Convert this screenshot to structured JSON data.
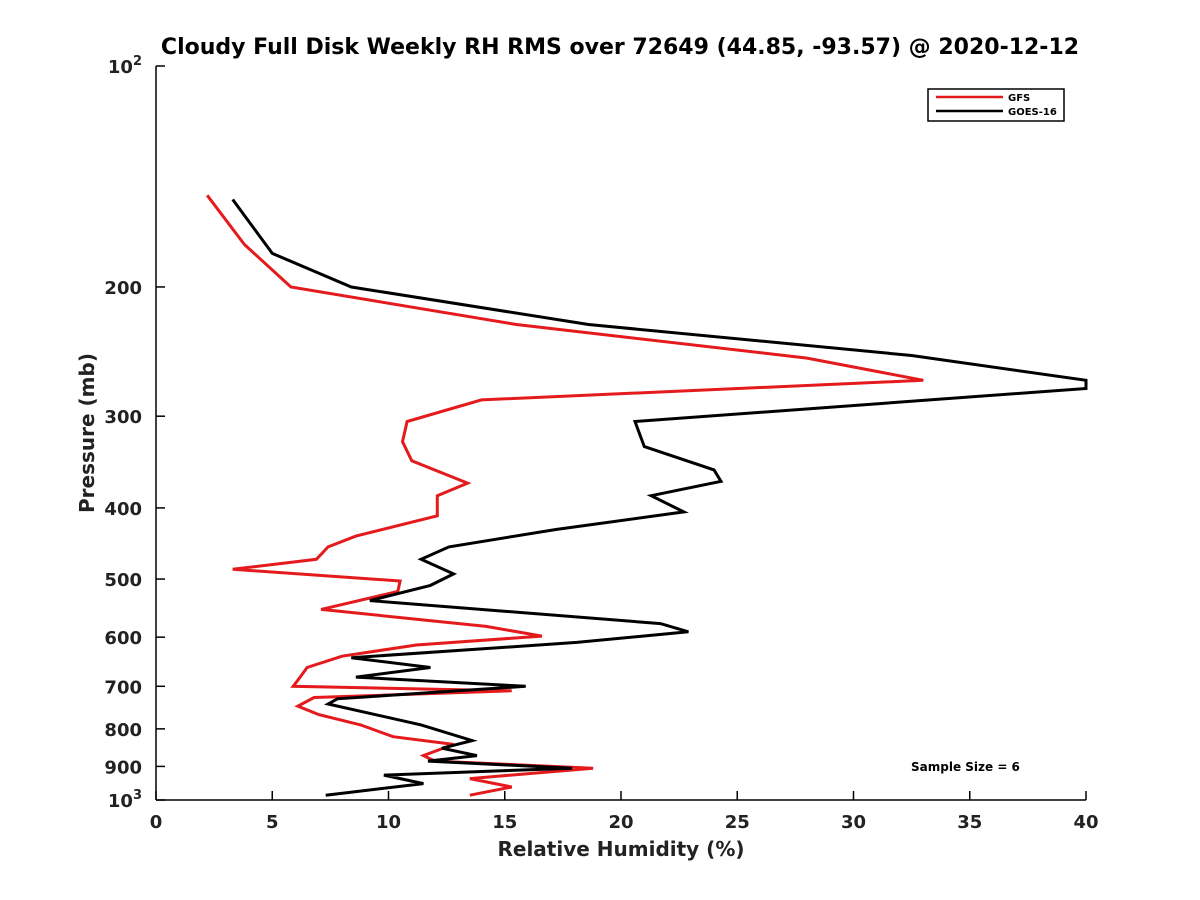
{
  "chart_data": {
    "type": "line",
    "title": "Cloudy Full Disk Weekly RH RMS over 72649 (44.85, -93.57) @ 2020-12-12",
    "xlabel": "Relative Humidity (%)",
    "ylabel": "Pressure (mb)",
    "xlim": [
      0,
      40
    ],
    "ylim": [
      100,
      1000
    ],
    "y_scale": "log",
    "y_reversed": true,
    "x_ticks": [
      0,
      5,
      10,
      15,
      20,
      25,
      30,
      35,
      40
    ],
    "y_ticks": [
      {
        "value": 100,
        "label": "10",
        "sup": "2"
      },
      {
        "value": 200,
        "label": "200"
      },
      {
        "value": 300,
        "label": "300"
      },
      {
        "value": 400,
        "label": "400"
      },
      {
        "value": 500,
        "label": "500"
      },
      {
        "value": 600,
        "label": "600"
      },
      {
        "value": 700,
        "label": "700"
      },
      {
        "value": 800,
        "label": "800"
      },
      {
        "value": 900,
        "label": "900"
      },
      {
        "value": 1000,
        "label": "10",
        "sup": "3"
      }
    ],
    "grid": false,
    "legend_position": "top-right",
    "annotation": "Sample Size = 6",
    "series": [
      {
        "name": "GFS",
        "color": "#e41a1c",
        "points": [
          [
            2.2,
            150
          ],
          [
            3.8,
            175
          ],
          [
            5.8,
            200
          ],
          [
            15.5,
            225
          ],
          [
            28,
            250
          ],
          [
            33,
            268
          ],
          [
            14,
            285
          ],
          [
            10.8,
            305
          ],
          [
            10.6,
            325
          ],
          [
            11.0,
            345
          ],
          [
            13.4,
            370
          ],
          [
            12.1,
            385
          ],
          [
            12.1,
            410
          ],
          [
            8.6,
            437
          ],
          [
            7.4,
            452
          ],
          [
            6.9,
            470
          ],
          [
            3.3,
            485
          ],
          [
            10.5,
            503
          ],
          [
            10.4,
            520
          ],
          [
            7.1,
            550
          ],
          [
            14.2,
            580
          ],
          [
            16.6,
            598
          ],
          [
            11.2,
            615
          ],
          [
            8.0,
            637
          ],
          [
            6.5,
            660
          ],
          [
            6.2,
            680
          ],
          [
            5.9,
            700
          ],
          [
            15.3,
            710
          ],
          [
            6.8,
            725
          ],
          [
            6.1,
            745
          ],
          [
            7.0,
            765
          ],
          [
            8.8,
            790
          ],
          [
            10.2,
            820
          ],
          [
            12.8,
            840
          ],
          [
            11.5,
            870
          ],
          [
            12.0,
            885
          ],
          [
            18.8,
            905
          ],
          [
            13.5,
            935
          ],
          [
            15.3,
            960
          ],
          [
            13.5,
            985
          ]
        ]
      },
      {
        "name": "GOES-16",
        "color": "#000000",
        "points": [
          [
            3.3,
            152
          ],
          [
            5.0,
            180
          ],
          [
            8.4,
            200
          ],
          [
            18.6,
            225
          ],
          [
            32.5,
            248
          ],
          [
            40,
            268
          ],
          [
            40,
            275
          ],
          [
            20.6,
            305
          ],
          [
            21.0,
            330
          ],
          [
            24.0,
            355
          ],
          [
            24.3,
            368
          ],
          [
            21.3,
            385
          ],
          [
            22.7,
            405
          ],
          [
            17.2,
            428
          ],
          [
            12.6,
            452
          ],
          [
            11.4,
            470
          ],
          [
            12.8,
            492
          ],
          [
            11.8,
            510
          ],
          [
            9.2,
            535
          ],
          [
            21.7,
            575
          ],
          [
            22.9,
            590
          ],
          [
            18.1,
            610
          ],
          [
            8.4,
            640
          ],
          [
            11.8,
            660
          ],
          [
            8.6,
            680
          ],
          [
            15.9,
            700
          ],
          [
            7.8,
            728
          ],
          [
            7.4,
            740
          ],
          [
            11.4,
            790
          ],
          [
            13.6,
            830
          ],
          [
            12.3,
            850
          ],
          [
            13.8,
            870
          ],
          [
            11.7,
            885
          ],
          [
            17.9,
            905
          ],
          [
            9.8,
            925
          ],
          [
            11.5,
            950
          ],
          [
            7.3,
            985
          ]
        ]
      }
    ]
  }
}
